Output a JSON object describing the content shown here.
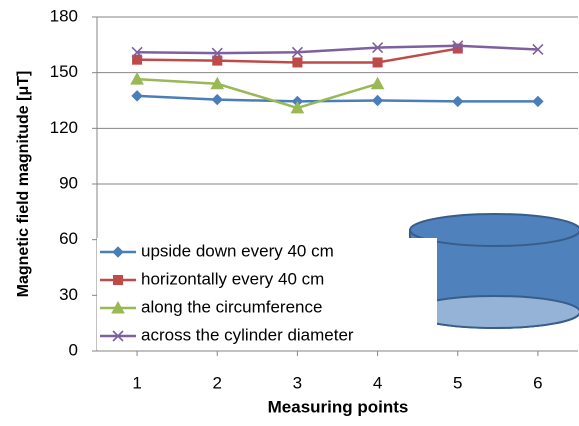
{
  "chart_data": {
    "type": "line",
    "y_label": "Magnetic field magnitude [μT]",
    "x_label": "Measuring  points",
    "x": [
      1,
      2,
      3,
      4,
      5,
      6
    ],
    "xlim": [
      0.5,
      6.5
    ],
    "xticks": [
      1,
      2,
      3,
      4,
      5,
      6
    ],
    "ylim": [
      0,
      180
    ],
    "yticks": [
      0,
      30,
      60,
      90,
      120,
      150,
      180
    ],
    "grid": true,
    "legend": "bottom-left",
    "series": [
      {
        "name": "upside down every 40 cm",
        "color": "#4a7ebb",
        "marker": "diamond",
        "values": [
          137.5,
          135.5,
          134.5,
          135,
          134.5,
          134.5
        ]
      },
      {
        "name": "horizontally every 40 cm",
        "color": "#be4b48",
        "marker": "square",
        "values": [
          157,
          156.5,
          155.5,
          155.5,
          163,
          null
        ]
      },
      {
        "name": "along the circumference",
        "color": "#98b954",
        "marker": "triangle",
        "values": [
          146.5,
          144,
          131,
          144,
          null,
          null
        ]
      },
      {
        "name": "across the cylinder diameter",
        "color": "#7d60a0",
        "marker": "x",
        "values": [
          161,
          160.5,
          161,
          163.5,
          164.5,
          162.5
        ]
      }
    ]
  }
}
